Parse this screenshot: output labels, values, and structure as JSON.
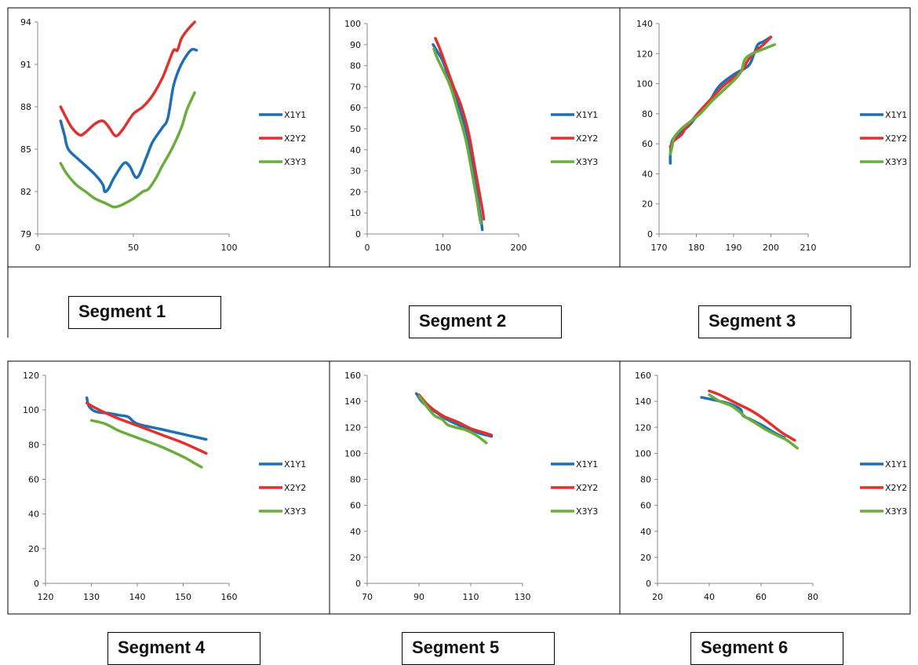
{
  "colors": {
    "series1": "#1f6fb2",
    "series2": "#e03131",
    "series3": "#6aad3d",
    "frame": "#000000",
    "axis": "#888888"
  },
  "chart_data": [
    {
      "type": "line",
      "label": "Segment 1",
      "xlim": [
        0,
        100
      ],
      "ylim": [
        79,
        94
      ],
      "xticks": [
        0,
        50,
        100
      ],
      "yticks": [
        79,
        82,
        85,
        88,
        91,
        94
      ],
      "legend": "right",
      "grid": false,
      "series": [
        {
          "name": "X1Y1",
          "x": [
            12,
            14,
            16,
            22,
            30,
            34,
            35,
            37,
            40,
            45,
            48,
            52,
            57,
            60,
            65,
            68,
            71,
            75,
            80,
            83
          ],
          "y": [
            87,
            86,
            85,
            84.2,
            83.2,
            82.5,
            82,
            82.2,
            83,
            84,
            83.8,
            83,
            84.5,
            85.5,
            86.5,
            87.2,
            89.5,
            91,
            92,
            92
          ]
        },
        {
          "name": "X2Y2",
          "x": [
            12,
            15,
            18,
            22,
            25,
            30,
            34,
            37,
            40,
            42,
            45,
            50,
            55,
            60,
            65,
            68,
            71,
            73,
            75,
            78,
            82
          ],
          "y": [
            88,
            87.2,
            86.5,
            86,
            86.2,
            86.8,
            87,
            86.6,
            86,
            86,
            86.5,
            87.5,
            88,
            88.8,
            90,
            91,
            92,
            92,
            92.8,
            93.4,
            94
          ]
        },
        {
          "name": "X3Y3",
          "x": [
            12,
            15,
            20,
            25,
            30,
            35,
            38,
            40,
            43,
            46,
            50,
            55,
            58,
            62,
            65,
            70,
            75,
            78,
            82
          ],
          "y": [
            84,
            83.3,
            82.5,
            82,
            81.5,
            81.2,
            81,
            80.9,
            81,
            81.2,
            81.5,
            82,
            82.2,
            83,
            83.8,
            85,
            86.5,
            87.8,
            89
          ]
        }
      ]
    },
    {
      "type": "line",
      "label": "Segment 2",
      "xlim": [
        0,
        200
      ],
      "ylim": [
        0,
        100
      ],
      "xticks": [
        0,
        100,
        200
      ],
      "yticks": [
        0,
        10,
        20,
        30,
        40,
        50,
        60,
        70,
        80,
        90,
        100
      ],
      "legend": "right",
      "grid": false,
      "series": [
        {
          "name": "X1Y1",
          "x": [
            87,
            92,
            100,
            110,
            120,
            130,
            138,
            144,
            148,
            151,
            152
          ],
          "y": [
            90,
            87,
            82,
            72,
            62,
            50,
            35,
            22,
            12,
            5,
            2
          ]
        },
        {
          "name": "X2Y2",
          "x": [
            90,
            96,
            104,
            114,
            124,
            134,
            142,
            148,
            152,
            154
          ],
          "y": [
            93,
            88,
            80,
            70,
            61,
            48,
            32,
            20,
            12,
            7
          ]
        },
        {
          "name": "X3Y3",
          "x": [
            88,
            92,
            100,
            110,
            120,
            130,
            137,
            142,
            145,
            148,
            150
          ],
          "y": [
            88,
            84,
            78,
            70,
            58,
            45,
            32,
            22,
            16,
            9,
            5
          ]
        }
      ]
    },
    {
      "type": "line",
      "label": "Segment 3",
      "xlim": [
        170,
        210
      ],
      "ylim": [
        0,
        140
      ],
      "xticks": [
        170,
        180,
        190,
        200,
        210
      ],
      "yticks": [
        0,
        20,
        40,
        60,
        80,
        100,
        120,
        140
      ],
      "legend": "right",
      "grid": false,
      "series": [
        {
          "name": "X1Y1",
          "x": [
            173,
            173,
            173.3,
            174,
            176,
            178,
            180,
            183,
            186,
            190,
            194,
            195.5,
            196.5,
            198,
            200
          ],
          "y": [
            47,
            52,
            60,
            64,
            68,
            72,
            78,
            86,
            98,
            106,
            112,
            120,
            126,
            128,
            131
          ]
        },
        {
          "name": "X2Y2",
          "x": [
            173,
            174,
            176,
            177,
            179,
            181,
            184,
            187,
            190,
            192,
            194,
            196,
            198,
            200
          ],
          "y": [
            58,
            62,
            66,
            70,
            76,
            82,
            90,
            98,
            104,
            108,
            116,
            122,
            126,
            131
          ]
        },
        {
          "name": "X3Y3",
          "x": [
            173,
            173.5,
            174,
            176,
            178,
            181,
            184,
            187,
            190,
            192,
            193,
            195,
            198,
            201
          ],
          "y": [
            53,
            58,
            64,
            70,
            74,
            80,
            88,
            95,
            102,
            108,
            116,
            120,
            123,
            126
          ]
        }
      ]
    },
    {
      "type": "line",
      "label": "Segment 4",
      "xlim": [
        120,
        160
      ],
      "ylim": [
        0,
        120
      ],
      "xticks": [
        120,
        130,
        140,
        150,
        160
      ],
      "yticks": [
        0,
        20,
        40,
        60,
        80,
        100,
        120
      ],
      "legend": "right",
      "grid": false,
      "series": [
        {
          "name": "X1Y1",
          "x": [
            129,
            129.5,
            131,
            134,
            136,
            138,
            140,
            145,
            150,
            155
          ],
          "y": [
            107,
            102,
            99,
            98,
            97,
            96,
            92,
            89,
            86,
            83
          ]
        },
        {
          "name": "X2Y2",
          "x": [
            129,
            131,
            135,
            140,
            145,
            150,
            155
          ],
          "y": [
            104,
            101,
            96,
            91,
            86,
            81,
            75
          ]
        },
        {
          "name": "X3Y3",
          "x": [
            130,
            133,
            136,
            140,
            145,
            150,
            152,
            154
          ],
          "y": [
            94,
            92,
            88,
            84,
            79,
            73,
            70,
            67
          ]
        }
      ]
    },
    {
      "type": "line",
      "label": "Segment 5",
      "xlim": [
        70,
        130
      ],
      "ylim": [
        0,
        160
      ],
      "xticks": [
        70,
        90,
        110,
        130
      ],
      "yticks": [
        0,
        20,
        40,
        60,
        80,
        100,
        120,
        140,
        160
      ],
      "legend": "right",
      "grid": false,
      "series": [
        {
          "name": "X1Y1",
          "x": [
            89,
            91,
            94,
            97,
            100,
            105,
            110,
            114,
            118
          ],
          "y": [
            146,
            140,
            135,
            131,
            127,
            122,
            118,
            115,
            113
          ]
        },
        {
          "name": "X2Y2",
          "x": [
            90,
            93,
            96,
            100,
            105,
            110,
            115,
            118
          ],
          "y": [
            145,
            138,
            133,
            128,
            124,
            119,
            116,
            114
          ]
        },
        {
          "name": "X3Y3",
          "x": [
            90,
            93,
            96,
            99,
            101,
            104,
            108,
            112,
            116
          ],
          "y": [
            144,
            136,
            129,
            126,
            122,
            120,
            118,
            114,
            108
          ]
        }
      ]
    },
    {
      "type": "line",
      "label": "Segment 6",
      "xlim": [
        20,
        80
      ],
      "ylim": [
        0,
        160
      ],
      "xticks": [
        20,
        40,
        60,
        80
      ],
      "yticks": [
        0,
        20,
        40,
        60,
        80,
        100,
        120,
        140,
        160
      ],
      "legend": "right",
      "grid": false,
      "series": [
        {
          "name": "X1Y1",
          "x": [
            37,
            42,
            48,
            52,
            53,
            56,
            60,
            65,
            69
          ],
          "y": [
            143,
            141,
            138,
            134,
            129,
            126,
            122,
            116,
            112
          ]
        },
        {
          "name": "X2Y2",
          "x": [
            40,
            44,
            48,
            52,
            56,
            60,
            64,
            68,
            73
          ],
          "y": [
            148,
            145,
            141,
            137,
            133,
            128,
            122,
            116,
            110
          ]
        },
        {
          "name": "X3Y3",
          "x": [
            40,
            44,
            48,
            51,
            54,
            58,
            62,
            66,
            70,
            74
          ],
          "y": [
            145,
            140,
            137,
            133,
            128,
            123,
            118,
            114,
            110,
            104
          ]
        }
      ]
    }
  ]
}
